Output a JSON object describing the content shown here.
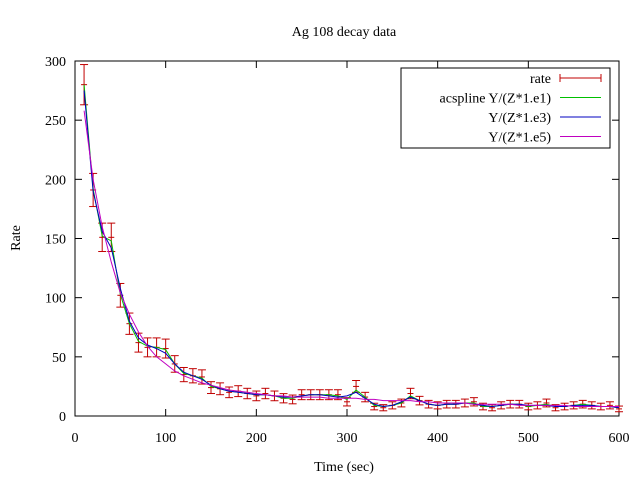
{
  "chart_data": {
    "type": "line",
    "title": "Ag 108 decay data",
    "xlabel": "Time (sec)",
    "ylabel": "Rate",
    "xlim": [
      0,
      600
    ],
    "ylim": [
      0,
      300
    ],
    "xticks": [
      0,
      100,
      200,
      300,
      400,
      500,
      600
    ],
    "yticks": [
      0,
      50,
      100,
      150,
      200,
      250,
      300
    ],
    "grid": false,
    "legend": "top-right",
    "series": [
      {
        "name": "rate",
        "kind": "errorbars",
        "color": "#c00000",
        "x": [
          10,
          20,
          30,
          40,
          50,
          60,
          70,
          80,
          90,
          100,
          110,
          120,
          130,
          140,
          150,
          160,
          170,
          180,
          190,
          200,
          210,
          220,
          230,
          240,
          250,
          260,
          270,
          280,
          290,
          300,
          310,
          320,
          330,
          340,
          350,
          360,
          370,
          380,
          390,
          400,
          410,
          420,
          430,
          440,
          450,
          460,
          470,
          480,
          490,
          500,
          510,
          520,
          530,
          540,
          550,
          560,
          570,
          580,
          590,
          600
        ],
        "y": [
          280,
          191,
          151,
          151,
          102,
          78,
          62,
          58,
          58,
          57,
          44,
          35,
          34,
          33,
          24,
          23,
          20,
          21,
          19,
          17,
          19,
          17,
          15,
          14,
          18,
          18,
          18,
          18,
          18,
          12,
          25,
          16,
          8,
          7,
          9,
          11,
          19,
          13,
          10,
          9,
          10,
          10,
          11,
          12,
          8,
          7,
          9,
          10,
          10,
          8,
          9,
          11,
          7,
          8,
          9,
          10,
          9,
          8,
          9,
          6
        ],
        "err": [
          17,
          14,
          12,
          12,
          10,
          9,
          8,
          8,
          8,
          8,
          7,
          6,
          6,
          6,
          5,
          5,
          4.5,
          4.6,
          4.4,
          4.1,
          4.4,
          4.1,
          3.9,
          3.7,
          4.2,
          4.2,
          4.2,
          4.2,
          4.2,
          3.5,
          5,
          4,
          2.8,
          2.6,
          3,
          3.3,
          4.4,
          3.6,
          3.2,
          3,
          3.2,
          3.2,
          3.3,
          3.5,
          2.8,
          2.6,
          3,
          3.2,
          3.2,
          2.8,
          3,
          3.3,
          2.6,
          2.8,
          3,
          3.2,
          3,
          2.8,
          3,
          2.4
        ]
      },
      {
        "name": "acspline Y/(Z*1.e1)",
        "color": "#00c000",
        "x": [
          10,
          20,
          30,
          40,
          50,
          60,
          70,
          80,
          90,
          100,
          110,
          120,
          130,
          140,
          150,
          160,
          170,
          180,
          190,
          200,
          210,
          220,
          230,
          240,
          250,
          260,
          270,
          280,
          290,
          300,
          310,
          320,
          330,
          340,
          350,
          360,
          370,
          380,
          390,
          400,
          410,
          420,
          430,
          440,
          450,
          460,
          470,
          480,
          490,
          500,
          510,
          520,
          530,
          540,
          550,
          560,
          570,
          580,
          590,
          600
        ],
        "y": [
          280,
          192,
          152,
          148,
          103,
          78,
          63,
          59,
          58,
          56,
          44,
          36,
          34,
          32,
          25,
          23,
          21,
          20,
          19,
          18,
          18,
          17,
          15,
          15,
          17,
          18,
          18,
          18,
          17,
          14,
          22,
          16,
          9,
          8,
          9,
          11,
          17,
          13,
          10,
          9,
          10,
          10,
          11,
          11,
          8,
          8,
          9,
          10,
          10,
          8,
          9,
          10,
          8,
          8,
          9,
          10,
          9,
          8,
          8,
          7
        ]
      },
      {
        "name": "Y/(Z*1.e3)",
        "color": "#0000c0",
        "x": [
          10,
          20,
          30,
          40,
          50,
          60,
          70,
          80,
          90,
          100,
          110,
          120,
          130,
          140,
          150,
          160,
          170,
          180,
          190,
          200,
          210,
          220,
          230,
          240,
          250,
          260,
          270,
          280,
          290,
          300,
          310,
          320,
          330,
          340,
          350,
          360,
          370,
          380,
          390,
          400,
          410,
          420,
          430,
          440,
          450,
          460,
          470,
          480,
          490,
          500,
          510,
          520,
          530,
          540,
          550,
          560,
          570,
          580,
          590,
          600
        ],
        "y": [
          275,
          190,
          156,
          142,
          108,
          80,
          66,
          60,
          57,
          53,
          44,
          37,
          34,
          31,
          26,
          23,
          21,
          20,
          19,
          18,
          18,
          17,
          16,
          16,
          17,
          18,
          18,
          17,
          16,
          17,
          20,
          15,
          10,
          8,
          9,
          12,
          16,
          13,
          10,
          9,
          10,
          10,
          11,
          10,
          9,
          8,
          9,
          10,
          10,
          9,
          9,
          9,
          8,
          8,
          9,
          9,
          9,
          8,
          8,
          7
        ]
      },
      {
        "name": "Y/(Z*1.e5)",
        "color": "#c000c0",
        "x": [
          10,
          20,
          30,
          40,
          50,
          60,
          70,
          80,
          90,
          100,
          110,
          120,
          130,
          140,
          150,
          160,
          170,
          180,
          190,
          200,
          210,
          220,
          230,
          240,
          250,
          260,
          270,
          280,
          290,
          300,
          310,
          320,
          330,
          340,
          350,
          360,
          370,
          380,
          390,
          400,
          410,
          420,
          430,
          440,
          450,
          460,
          470,
          480,
          490,
          500,
          510,
          520,
          530,
          540,
          550,
          560,
          570,
          580,
          590,
          600
        ],
        "y": [
          258,
          200,
          160,
          130,
          104,
          86,
          71,
          59,
          50,
          44,
          38,
          34,
          31,
          28,
          26,
          24,
          22,
          21,
          20,
          19,
          18,
          17,
          17,
          16,
          16,
          16,
          16,
          15,
          15,
          15,
          15,
          14,
          14,
          13,
          13,
          13,
          13,
          12,
          12,
          11,
          11,
          11,
          11,
          10,
          10,
          10,
          10,
          10,
          9,
          9,
          9,
          9,
          9,
          9,
          8,
          8,
          8,
          8,
          8,
          8
        ]
      }
    ]
  }
}
